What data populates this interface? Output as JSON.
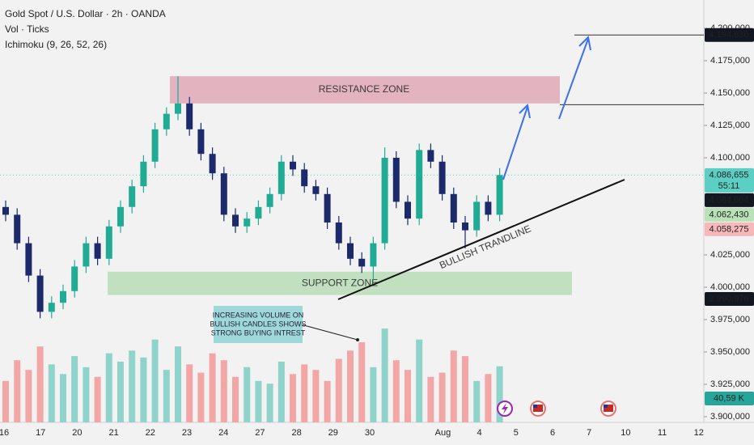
{
  "header": {
    "symbol": "Gold Spot / U.S. Dollar · 2h · OANDA",
    "volume_indicator": "Vol · Ticks",
    "ichimoku": "Ichimoku (9, 26, 52, 26)"
  },
  "chart_data": {
    "type": "candlestick",
    "categories": [
      "16",
      "17",
      "20",
      "21",
      "22",
      "23",
      "24",
      "27",
      "28",
      "29",
      "30",
      null,
      "Aug",
      "4",
      "5",
      "6",
      "7",
      "10",
      "11",
      "12"
    ],
    "open": [
      4062000,
      4056000,
      4034000,
      4009000,
      3981000,
      3988000,
      3997000,
      4016000,
      4034000,
      4022000,
      4047000,
      4062000,
      4078000,
      4097000,
      4122000,
      4134000,
      4142000,
      4122000,
      4103000,
      4088000,
      4056000,
      4047000,
      4053000,
      4062000,
      4072000,
      4097000,
      4091000,
      4078000,
      4072000,
      4050000,
      4034000,
      4022000,
      4016000,
      4034000,
      4100000,
      4066000,
      4053000,
      4106000,
      4097000,
      4072000,
      4050000,
      4044000,
      4066000,
      4056000
    ],
    "high": [
      4067000,
      4061000,
      4039000,
      4014000,
      3993000,
      4002000,
      4021000,
      4039000,
      4039000,
      4052000,
      4067000,
      4083000,
      4102000,
      4127000,
      4139000,
      4163000,
      4147000,
      4127000,
      4108000,
      4093000,
      4061000,
      4058000,
      4067000,
      4077000,
      4102000,
      4102000,
      4096000,
      4083000,
      4077000,
      4055000,
      4039000,
      4027000,
      4039000,
      4108000,
      4105000,
      4071000,
      4111000,
      4111000,
      4102000,
      4077000,
      4055000,
      4071000,
      4071000,
      4092000
    ],
    "low": [
      4051000,
      4029000,
      4004000,
      3976000,
      3976000,
      3983000,
      3992000,
      4011000,
      4017000,
      4017000,
      4042000,
      4057000,
      4073000,
      4092000,
      4117000,
      4129000,
      4117000,
      4098000,
      4083000,
      4051000,
      4042000,
      4042000,
      4048000,
      4057000,
      4067000,
      4086000,
      4073000,
      4067000,
      4045000,
      4029000,
      4017000,
      4011000,
      4005000,
      4029000,
      4061000,
      4048000,
      4048000,
      4092000,
      4067000,
      4045000,
      4030000,
      4039000,
      4051000,
      4051000
    ],
    "close": [
      4056000,
      4034000,
      4009000,
      3981000,
      3988000,
      3997000,
      4016000,
      4034000,
      4022000,
      4047000,
      4062000,
      4078000,
      4097000,
      4122000,
      4134000,
      4142000,
      4122000,
      4103000,
      4088000,
      4056000,
      4047000,
      4053000,
      4062000,
      4072000,
      4097000,
      4091000,
      4078000,
      4072000,
      4050000,
      4034000,
      4022000,
      4016000,
      4034000,
      4100000,
      4066000,
      4053000,
      4106000,
      4097000,
      4072000,
      4050000,
      4044000,
      4066000,
      4056000,
      4086655
    ],
    "up_color": "#22ab94",
    "down_color": "#1c2a6b",
    "volume": {
      "values": [
        30,
        45,
        38,
        55,
        42,
        35,
        48,
        40,
        33,
        50,
        44,
        52,
        47,
        60,
        38,
        55,
        42,
        36,
        50,
        45,
        33,
        40,
        30,
        28,
        44,
        35,
        42,
        38,
        30,
        46,
        52,
        58,
        40,
        68,
        45,
        38,
        60,
        33,
        36,
        52,
        48,
        30,
        35,
        40.59
      ],
      "last_label": "40,59 K",
      "up_color": "#8fd3ca",
      "down_color": "#f3a6a6"
    },
    "ylim": [
      3895625,
      4221875
    ],
    "yticks": [
      {
        "value": 3900000,
        "label": "3.900,000"
      },
      {
        "value": 3925000,
        "label": "3.925,000"
      },
      {
        "value": 3950000,
        "label": "3.950,000"
      },
      {
        "value": 3975000,
        "label": "3.975,000"
      },
      {
        "value": 4000000,
        "label": "4.000,000"
      },
      {
        "value": 4025000,
        "label": "4.025,000"
      },
      {
        "value": 4100000,
        "label": "4.100,000"
      },
      {
        "value": 4125000,
        "label": "4.125,000"
      },
      {
        "value": 4150000,
        "label": "4.150,000"
      },
      {
        "value": 4175000,
        "label": "4.175,000"
      },
      {
        "value": 4200000,
        "label": "4.200,000"
      }
    ],
    "price_labels": [
      {
        "value": 4194836,
        "label": "4.194,836",
        "bg": "#131722",
        "fg": "#ffffff"
      },
      {
        "value": 4086655,
        "label": "4.086,655",
        "countdown": "55:11",
        "bg": "#5ccfc4",
        "fg": "#0b2b28"
      },
      {
        "value": 4084664,
        "label": "4.084,664",
        "bg": "#131722",
        "fg": "#ffffff"
      },
      {
        "value": 4062430,
        "label": "4.062,430",
        "bg": "#b9e2b9",
        "fg": "#1b3b1b"
      },
      {
        "value": 4058275,
        "label": "4.058,275",
        "bg": "#f6b8b8",
        "fg": "#4a1515"
      },
      {
        "value": 3990976,
        "label": "3.990,976",
        "bg": "#131722",
        "fg": "#ffffff"
      }
    ],
    "resistance_zone": {
      "label": "RESISTANCE ZONE",
      "low": 4142000,
      "high": 4163000,
      "color": "#d9899c"
    },
    "support_zone": {
      "label": "SUPPORT ZONE",
      "low": 3994000,
      "high": 4012000,
      "color": "#9fd49f"
    },
    "target_level": 4141000,
    "trendline": {
      "label": "BULLISH TRANDLINE",
      "from": 3990625,
      "to": 4083125
    },
    "annotation": [
      "INCREASING VOLUME ON",
      "BULLISH CANDLES SHOWS",
      "STRONG BUYING INTREST"
    ]
  }
}
